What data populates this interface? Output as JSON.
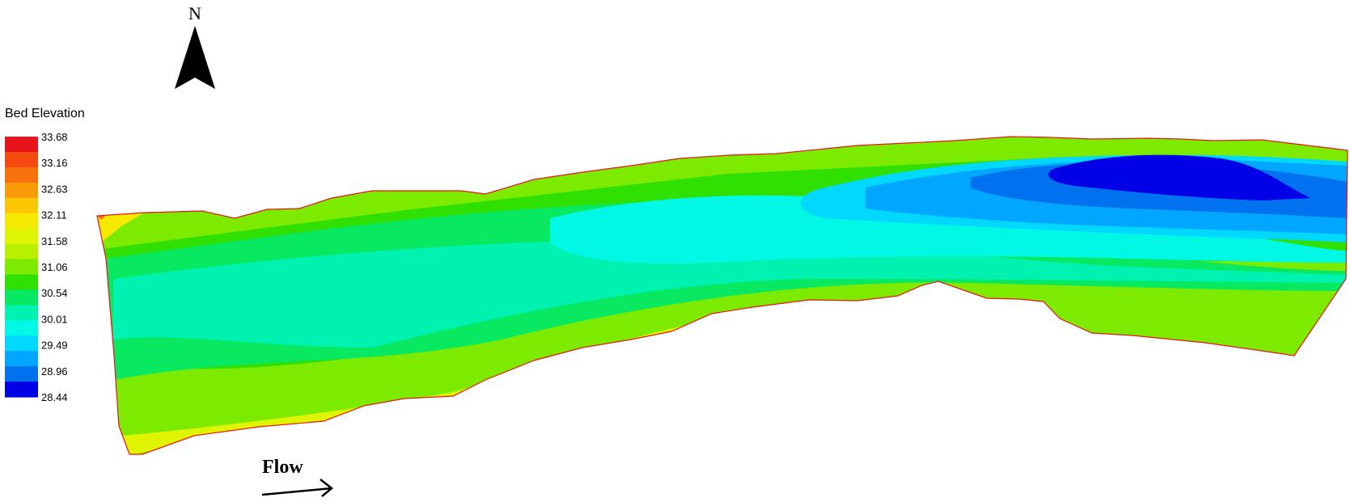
{
  "north": {
    "label": "N"
  },
  "legend": {
    "title": "Bed Elevation",
    "values": [
      "33.68",
      "33.16",
      "32.63",
      "32.11",
      "31.58",
      "31.06",
      "30.54",
      "30.01",
      "29.49",
      "28.96",
      "28.44"
    ],
    "colors": [
      "#e8141c",
      "#f44a10",
      "#f7720c",
      "#f99a08",
      "#fbc704",
      "#f5ea00",
      "#dff400",
      "#b8f000",
      "#7ceb00",
      "#2fe000",
      "#08e860",
      "#00f2b0",
      "#00f8e4",
      "#00d8ff",
      "#00a6ff",
      "#0072f0",
      "#0000e6"
    ]
  },
  "flow": {
    "label": "Flow"
  }
}
